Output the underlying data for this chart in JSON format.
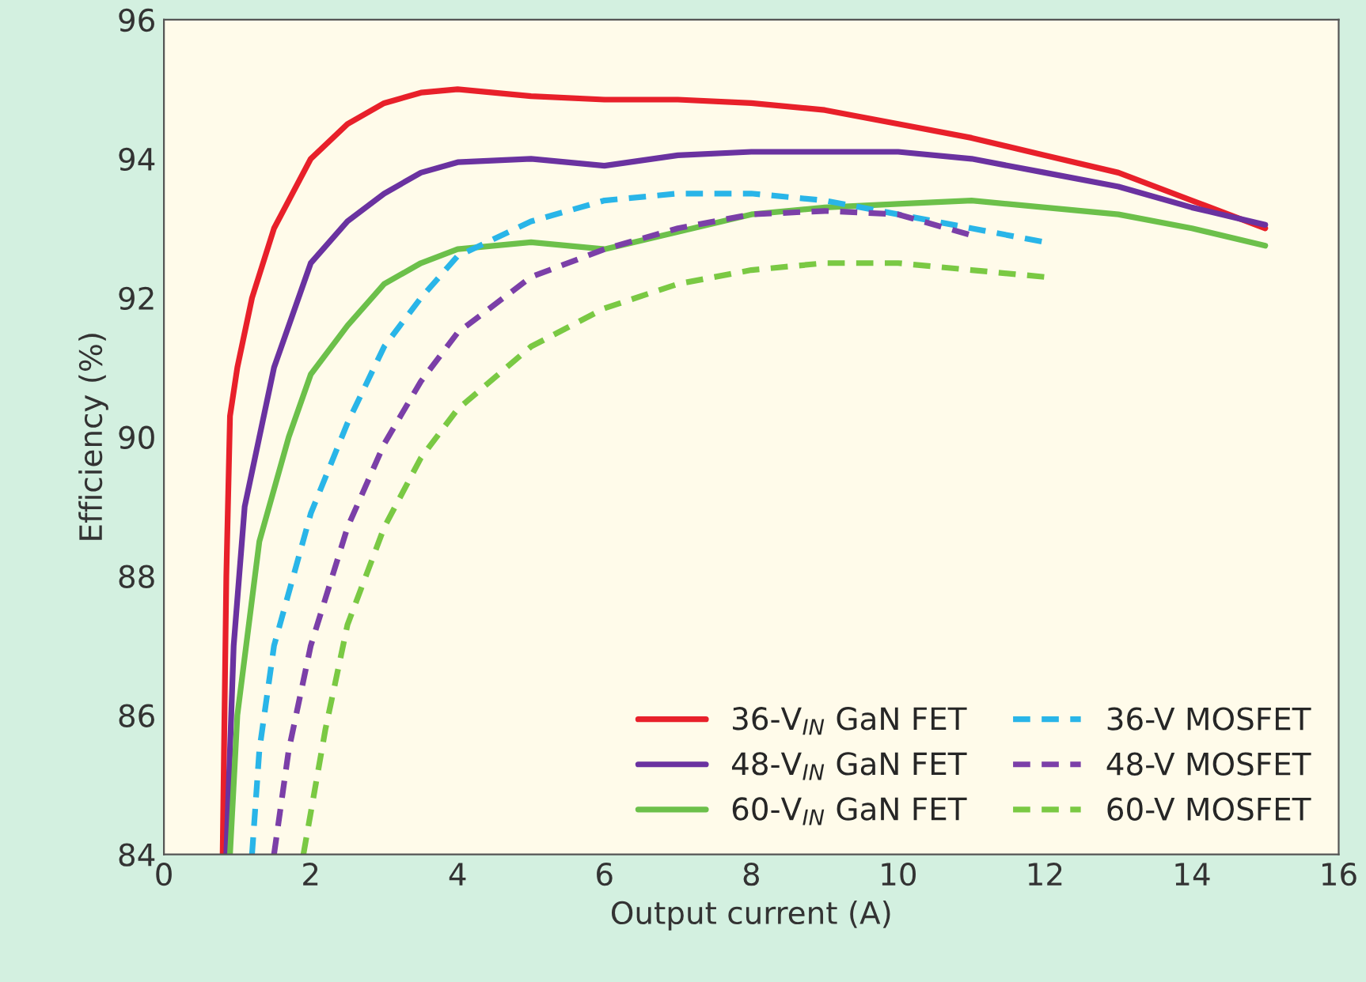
{
  "chart_data": {
    "type": "line",
    "xlabel": "Output current (A)",
    "ylabel": "Efficiency (%)",
    "xlim": [
      0,
      16
    ],
    "ylim": [
      84,
      96
    ],
    "xticks": [
      0,
      2,
      4,
      6,
      8,
      10,
      12,
      14,
      16
    ],
    "yticks": [
      84,
      86,
      88,
      90,
      92,
      94,
      96
    ],
    "grid": false,
    "legend": "bottom right",
    "marker": "none",
    "series": [
      {
        "name": "36-V$_{IN}$ GaN FET",
        "color": "#e8202a",
        "line_style": "solid",
        "x": [
          0.8,
          0.85,
          0.9,
          1.0,
          1.2,
          1.5,
          2,
          2.5,
          3,
          3.5,
          4,
          5,
          6,
          7,
          8,
          9,
          10,
          11,
          12,
          13,
          14,
          15
        ],
        "values": [
          84,
          88,
          90.3,
          91,
          92,
          93,
          94,
          94.5,
          94.8,
          94.95,
          95,
          94.9,
          94.85,
          94.85,
          94.8,
          94.7,
          94.5,
          94.3,
          94.05,
          93.8,
          93.4,
          93.0
        ]
      },
      {
        "name": "48-V$_{IN}$ GaN FET",
        "color": "#6a32a0",
        "line_style": "solid",
        "x": [
          0.85,
          0.95,
          1.1,
          1.5,
          2,
          2.5,
          3,
          3.5,
          4,
          5,
          6,
          7,
          8,
          9,
          10,
          11,
          12,
          13,
          14,
          15
        ],
        "values": [
          84,
          87,
          89,
          91,
          92.5,
          93.1,
          93.5,
          93.8,
          93.95,
          94.0,
          93.9,
          94.05,
          94.1,
          94.1,
          94.1,
          94.0,
          93.8,
          93.6,
          93.3,
          93.05
        ]
      },
      {
        "name": "60-V$_{IN}$ GaN FET",
        "color": "#6cc04a",
        "line_style": "solid",
        "x": [
          0.9,
          1.0,
          1.3,
          1.7,
          2,
          2.5,
          3,
          3.5,
          4,
          5,
          6,
          7,
          8,
          9,
          10,
          11,
          12,
          13,
          14,
          15
        ],
        "values": [
          84,
          86,
          88.5,
          90,
          90.9,
          91.6,
          92.2,
          92.5,
          92.7,
          92.8,
          92.7,
          92.95,
          93.2,
          93.3,
          93.35,
          93.4,
          93.3,
          93.2,
          93.0,
          92.75
        ]
      },
      {
        "name": "36-V MOSFET",
        "color": "#29b5e8",
        "line_style": "dashed",
        "x": [
          1.2,
          1.3,
          1.5,
          2,
          2.5,
          3,
          3.5,
          4,
          5,
          6,
          7,
          8,
          9,
          10,
          11,
          12
        ],
        "values": [
          84,
          85.5,
          87,
          88.9,
          90.2,
          91.3,
          92.0,
          92.6,
          93.1,
          93.4,
          93.5,
          93.5,
          93.4,
          93.2,
          93.0,
          92.8
        ]
      },
      {
        "name": "48-V MOSFET",
        "color": "#7b3fa8",
        "line_style": "dashed",
        "x": [
          1.5,
          1.7,
          2,
          2.5,
          3,
          3.5,
          4,
          5,
          6,
          7,
          8,
          9,
          10,
          11
        ],
        "values": [
          84,
          85.5,
          87,
          88.7,
          89.9,
          90.8,
          91.5,
          92.3,
          92.7,
          93.0,
          93.2,
          93.25,
          93.2,
          92.9
        ]
      },
      {
        "name": "60-V MOSFET",
        "color": "#7ac943",
        "line_style": "dashed",
        "x": [
          1.9,
          2.2,
          2.5,
          3,
          3.5,
          4,
          5,
          6,
          7,
          8,
          9,
          10,
          11,
          12
        ],
        "values": [
          84,
          85.8,
          87.3,
          88.7,
          89.7,
          90.4,
          91.3,
          91.85,
          92.2,
          92.4,
          92.5,
          92.5,
          92.4,
          92.3
        ]
      }
    ]
  }
}
